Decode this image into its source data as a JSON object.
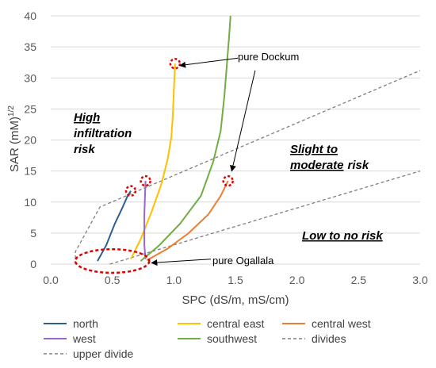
{
  "chart_data": {
    "type": "line",
    "title": "",
    "xlabel": "SPC (dS/m, mS/cm)",
    "ylabel": "SAR (mM)",
    "ylabel_sup": "1/2",
    "xlim": [
      0.0,
      3.0
    ],
    "ylim": [
      0,
      40
    ],
    "x_ticks": [
      0.0,
      0.5,
      1.0,
      1.5,
      2.0,
      2.5,
      3.0
    ],
    "x_tick_labels": [
      "0.0",
      "0.5",
      "1.0",
      "1.5",
      "2.0",
      "2.5",
      "3.0"
    ],
    "y_ticks": [
      0,
      5,
      10,
      15,
      20,
      25,
      30,
      35,
      40
    ],
    "y_tick_labels": [
      "0",
      "5",
      "10",
      "15",
      "20",
      "25",
      "30",
      "35",
      "40"
    ],
    "grid": "horizontal",
    "legend_position": "bottom",
    "series": [
      {
        "name": "north",
        "color": "#2e5d8e",
        "style": "solid",
        "x": [
          0.38,
          0.45,
          0.52,
          0.58,
          0.62,
          0.65
        ],
        "y": [
          0.5,
          3.0,
          6.5,
          9.0,
          10.8,
          11.8
        ]
      },
      {
        "name": "central east",
        "color": "#ffc000",
        "style": "solid",
        "x": [
          0.65,
          0.73,
          0.82,
          0.9,
          0.95,
          0.98,
          0.99,
          1.0,
          1.01
        ],
        "y": [
          0.8,
          4.0,
          8.5,
          13.0,
          17.0,
          20.5,
          23.5,
          28.0,
          32.3
        ]
      },
      {
        "name": "central west",
        "color": "#ed7d31",
        "style": "solid",
        "x": [
          0.78,
          0.95,
          1.12,
          1.28,
          1.38,
          1.44
        ],
        "y": [
          0.6,
          2.5,
          5.0,
          8.0,
          11.0,
          13.4
        ]
      },
      {
        "name": "west",
        "color": "#9966cc",
        "style": "solid",
        "x": [
          0.77,
          0.76,
          0.76,
          0.77
        ],
        "y": [
          0.8,
          3.0,
          8.0,
          13.4
        ]
      },
      {
        "name": "southwest",
        "color": "#70ad47",
        "style": "solid",
        "x": [
          0.73,
          0.88,
          1.05,
          1.22,
          1.32,
          1.38,
          1.41,
          1.43,
          1.45,
          1.46
        ],
        "y": [
          0.5,
          3.0,
          6.5,
          11.0,
          16.5,
          21.5,
          27.0,
          32.0,
          37.0,
          40.0
        ]
      },
      {
        "name": "divides",
        "color": "#7f7f7f",
        "style": "dashed",
        "x": [
          0.48,
          3.0
        ],
        "y": [
          0.0,
          15.0
        ]
      },
      {
        "name": "upper divide",
        "color": "#7f7f7f",
        "style": "dashed",
        "x": [
          0.2,
          0.2,
          0.4,
          3.0
        ],
        "y": [
          0.0,
          2.0,
          9.2,
          31.2
        ]
      }
    ],
    "highlight_circles": [
      {
        "x": 1.01,
        "y": 32.3
      },
      {
        "x": 0.65,
        "y": 11.8
      },
      {
        "x": 0.77,
        "y": 13.4
      },
      {
        "x": 1.44,
        "y": 13.4
      }
    ],
    "highlight_ellipse": {
      "cx": 0.5,
      "cy": 0.5,
      "rx": 0.3,
      "ry": 1.9
    },
    "annotations": [
      {
        "text": "pure Dockum",
        "x": 1.52,
        "y": 33.2,
        "arrow_to": [
          1.05,
          32.0
        ]
      },
      {
        "text": "",
        "x": 1.66,
        "y": 31.2,
        "arrow_to": [
          1.47,
          15.0
        ]
      },
      {
        "text": "pure Ogallala",
        "x": 1.3,
        "y": 0.8,
        "arrow_to": [
          0.82,
          0.2
        ]
      }
    ],
    "regions": {
      "high": [
        "High",
        "infiltration",
        "risk"
      ],
      "slight": [
        "Slight to",
        "moderate",
        "risk"
      ],
      "low": "Low to no risk"
    }
  }
}
